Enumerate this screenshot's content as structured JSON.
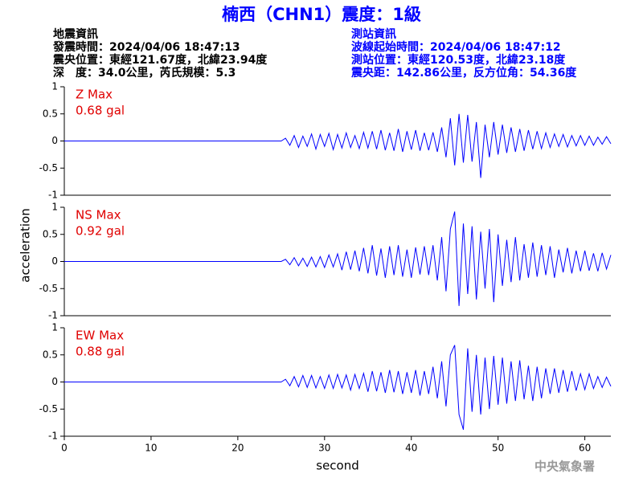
{
  "header": {
    "title": "楠西（CHN1）震度：1級",
    "left": [
      "地震資訊",
      "發震時間：2024/04/06 18:47:13",
      "震央位置：東經121.67度，北緯23.94度",
      "深　度：34.0公里，芮氏規模：5.3"
    ],
    "right": [
      "測站資訊",
      "波線起始時間：2024/04/06 18:47:12",
      "測站位置：東經120.53度，北緯23.18度",
      "震央距：142.86公里，反方位角：54.36度"
    ]
  },
  "footer": "中央氣象署",
  "chart_data": [
    {
      "type": "line",
      "name": "Z Max",
      "max_label": "0.68 gal",
      "label_color": "#e00000",
      "xlim": [
        0,
        63
      ],
      "ylim": [
        -1,
        1
      ],
      "yticks": [
        -1,
        -0.5,
        0,
        0.5,
        1
      ],
      "x": [
        0,
        25,
        25.5,
        26,
        26.5,
        27,
        27.5,
        28,
        28.5,
        29,
        29.5,
        30,
        30.5,
        31,
        31.5,
        32,
        32.5,
        33,
        33.5,
        34,
        34.5,
        35,
        35.5,
        36,
        36.5,
        37,
        37.5,
        38,
        38.5,
        39,
        39.5,
        40,
        40.5,
        41,
        41.5,
        42,
        42.5,
        43,
        43.5,
        44,
        44.5,
        45,
        45.5,
        46,
        46.5,
        47,
        47.5,
        48,
        48.5,
        49,
        49.5,
        50,
        50.5,
        51,
        51.5,
        52,
        52.5,
        53,
        53.5,
        54,
        54.5,
        55,
        55.5,
        56,
        56.5,
        57,
        57.5,
        58,
        58.5,
        59,
        59.5,
        60,
        60.5,
        61,
        61.5,
        62,
        62.5,
        63
      ],
      "series": [
        {
          "color": "#0000ff",
          "values": [
            0,
            0,
            0.05,
            -0.08,
            0.1,
            -0.12,
            0.09,
            -0.1,
            0.13,
            -0.15,
            0.12,
            -0.1,
            0.14,
            -0.16,
            0.12,
            -0.13,
            0.15,
            -0.12,
            0.1,
            -0.14,
            0.16,
            -0.13,
            0.18,
            -0.15,
            0.2,
            -0.17,
            0.15,
            -0.18,
            0.22,
            -0.2,
            0.18,
            -0.16,
            0.2,
            -0.18,
            0.15,
            -0.17,
            0.16,
            -0.2,
            0.25,
            -0.3,
            0.42,
            -0.45,
            0.5,
            -0.4,
            0.48,
            -0.38,
            0.35,
            -0.68,
            0.3,
            -0.3,
            0.35,
            -0.25,
            0.3,
            -0.22,
            0.25,
            -0.2,
            0.22,
            -0.18,
            0.2,
            -0.15,
            0.18,
            -0.14,
            0.15,
            -0.12,
            0.13,
            -0.1,
            0.12,
            -0.11,
            0.1,
            -0.09,
            0.1,
            -0.08,
            0.09,
            -0.08,
            0.07,
            -0.06,
            0.08,
            -0.05
          ]
        }
      ]
    },
    {
      "type": "line",
      "name": "NS Max",
      "max_label": "0.92 gal",
      "label_color": "#e00000",
      "ylabel": "acceleration",
      "xlim": [
        0,
        63
      ],
      "ylim": [
        -1,
        1
      ],
      "yticks": [
        -1,
        -0.5,
        0,
        0.5,
        1
      ],
      "x": [
        0,
        25,
        25.5,
        26,
        26.5,
        27,
        27.5,
        28,
        28.5,
        29,
        29.5,
        30,
        30.5,
        31,
        31.5,
        32,
        32.5,
        33,
        33.5,
        34,
        34.5,
        35,
        35.5,
        36,
        36.5,
        37,
        37.5,
        38,
        38.5,
        39,
        39.5,
        40,
        40.5,
        41,
        41.5,
        42,
        42.5,
        43,
        43.5,
        44,
        44.5,
        45,
        45.5,
        46,
        46.5,
        47,
        47.5,
        48,
        48.5,
        49,
        49.5,
        50,
        50.5,
        51,
        51.5,
        52,
        52.5,
        53,
        53.5,
        54,
        54.5,
        55,
        55.5,
        56,
        56.5,
        57,
        57.5,
        58,
        58.5,
        59,
        59.5,
        60,
        60.5,
        61,
        61.5,
        62,
        62.5,
        63
      ],
      "series": [
        {
          "color": "#0000ff",
          "values": [
            0,
            0,
            0.04,
            -0.06,
            0.07,
            -0.08,
            0.06,
            -0.09,
            0.08,
            -0.1,
            0.09,
            -0.11,
            0.12,
            -0.1,
            0.14,
            -0.16,
            0.18,
            -0.15,
            0.2,
            -0.18,
            0.25,
            -0.22,
            0.3,
            -0.26,
            0.24,
            -0.3,
            0.28,
            -0.25,
            0.3,
            -0.28,
            0.22,
            -0.3,
            0.26,
            -0.24,
            0.28,
            -0.25,
            0.3,
            -0.35,
            0.45,
            -0.55,
            0.6,
            0.92,
            -0.82,
            0.7,
            -0.6,
            0.65,
            -0.7,
            0.55,
            -0.5,
            0.6,
            -0.75,
            0.5,
            -0.45,
            0.4,
            -0.38,
            0.45,
            -0.35,
            0.32,
            -0.3,
            0.35,
            -0.28,
            0.3,
            -0.25,
            0.28,
            -0.3,
            0.22,
            -0.2,
            0.25,
            -0.22,
            0.2,
            -0.18,
            0.2,
            -0.17,
            0.15,
            -0.18,
            0.16,
            -0.14,
            0.12
          ]
        }
      ]
    },
    {
      "type": "line",
      "name": "EW Max",
      "max_label": "0.88 gal",
      "label_color": "#e00000",
      "xlabel": "second",
      "xlim": [
        0,
        63
      ],
      "xticks": [
        0,
        10,
        20,
        30,
        40,
        50,
        60
      ],
      "ylim": [
        -1,
        1
      ],
      "yticks": [
        -1,
        -0.5,
        0,
        0.5,
        1
      ],
      "x": [
        0,
        25,
        25.5,
        26,
        26.5,
        27,
        27.5,
        28,
        28.5,
        29,
        29.5,
        30,
        30.5,
        31,
        31.5,
        32,
        32.5,
        33,
        33.5,
        34,
        34.5,
        35,
        35.5,
        36,
        36.5,
        37,
        37.5,
        38,
        38.5,
        39,
        39.5,
        40,
        40.5,
        41,
        41.5,
        42,
        42.5,
        43,
        43.5,
        44,
        44.5,
        45,
        45.5,
        46,
        46.5,
        47,
        47.5,
        48,
        48.5,
        49,
        49.5,
        50,
        50.5,
        51,
        51.5,
        52,
        52.5,
        53,
        53.5,
        54,
        54.5,
        55,
        55.5,
        56,
        56.5,
        57,
        57.5,
        58,
        58.5,
        59,
        59.5,
        60,
        60.5,
        61,
        61.5,
        62,
        62.5,
        63
      ],
      "series": [
        {
          "color": "#0000ff",
          "values": [
            0,
            0,
            0.05,
            -0.07,
            0.1,
            -0.09,
            0.12,
            -0.1,
            0.12,
            -0.11,
            0.1,
            -0.12,
            0.13,
            -0.12,
            0.14,
            -0.11,
            0.13,
            -0.15,
            0.14,
            -0.12,
            0.16,
            -0.18,
            0.2,
            -0.17,
            0.18,
            -0.2,
            0.22,
            -0.19,
            0.2,
            -0.22,
            0.18,
            -0.2,
            0.22,
            -0.25,
            0.2,
            -0.22,
            0.28,
            -0.3,
            0.38,
            -0.45,
            0.5,
            0.68,
            -0.6,
            -0.88,
            0.62,
            -0.55,
            0.5,
            -0.6,
            0.45,
            -0.5,
            0.48,
            -0.42,
            0.45,
            -0.4,
            0.38,
            -0.35,
            0.4,
            -0.32,
            0.3,
            -0.35,
            0.28,
            -0.3,
            0.25,
            -0.22,
            0.25,
            -0.2,
            0.22,
            -0.18,
            0.2,
            -0.16,
            0.15,
            -0.14,
            0.15,
            -0.12,
            0.1,
            -0.1,
            0.09,
            -0.08
          ]
        }
      ]
    }
  ]
}
